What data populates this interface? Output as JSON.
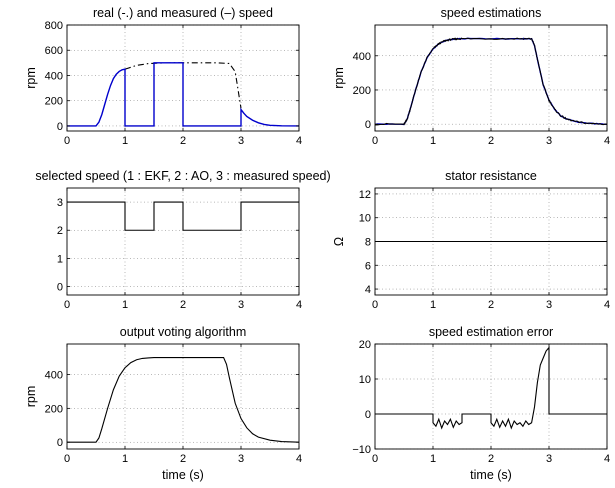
{
  "chart_data": [
    {
      "type": "line",
      "title": "real (-.) and measured (–) speed",
      "xlabel": "",
      "ylabel": "rpm",
      "xlim": [
        0,
        4
      ],
      "ylim": [
        -40,
        800
      ],
      "xticks": [
        0,
        1,
        2,
        3,
        4
      ],
      "yticks": [
        0,
        200,
        400,
        600,
        800
      ],
      "grid": true,
      "series": [
        {
          "style": "dash-dot",
          "color": "#000000",
          "x": [
            1.0,
            1.2,
            1.4,
            1.6,
            1.8,
            2.0,
            2.2,
            2.4,
            2.6,
            2.8,
            2.9,
            3.0
          ],
          "y": [
            450,
            480,
            494,
            498,
            500,
            500,
            500,
            500,
            500,
            495,
            430,
            140
          ]
        },
        {
          "style": "solid",
          "color": "#0000cc",
          "x": [
            0,
            0.5,
            0.55,
            0.6,
            0.65,
            0.7,
            0.75,
            0.8,
            0.85,
            0.9,
            0.95,
            1.0,
            1.0,
            1.5,
            1.5,
            2.0,
            2.0,
            3.0,
            3.0,
            3.05,
            3.1,
            3.2,
            3.3,
            3.4,
            3.5,
            3.7,
            4.0
          ],
          "y": [
            0,
            0,
            30,
            90,
            170,
            250,
            320,
            375,
            410,
            432,
            445,
            450,
            0,
            0,
            500,
            500,
            0,
            0,
            130,
            100,
            75,
            45,
            25,
            12,
            5,
            1,
            0
          ]
        }
      ]
    },
    {
      "type": "line",
      "title": "speed estimations",
      "xlabel": "",
      "ylabel": "rpm",
      "xlim": [
        0,
        4
      ],
      "ylim": [
        -40,
        580
      ],
      "xticks": [
        0,
        1,
        2,
        3,
        4
      ],
      "yticks": [
        0,
        200,
        400
      ],
      "grid": true,
      "series": [
        {
          "style": "solid-noisy",
          "color": "#0000cc",
          "x": [
            0,
            0.5,
            0.55,
            0.6,
            0.7,
            0.8,
            0.9,
            1.0,
            1.1,
            1.2,
            1.3,
            1.4,
            1.5,
            2.0,
            2.5,
            2.7,
            2.75,
            2.8,
            2.9,
            3.0,
            3.1,
            3.2,
            3.3,
            3.5,
            3.7,
            4.0
          ],
          "y": [
            0,
            0,
            25,
            80,
            200,
            310,
            390,
            440,
            470,
            487,
            495,
            498,
            500,
            500,
            500,
            500,
            460,
            380,
            230,
            140,
            85,
            50,
            30,
            12,
            4,
            0
          ]
        },
        {
          "style": "solid-noisy",
          "color": "#000000",
          "x": [
            0,
            0.5,
            0.55,
            0.6,
            0.7,
            0.8,
            0.9,
            1.0,
            1.1,
            1.2,
            1.3,
            1.4,
            1.5,
            2.0,
            2.5,
            2.7,
            2.75,
            2.8,
            2.9,
            3.0,
            3.1,
            3.2,
            3.3,
            3.5,
            3.7,
            4.0
          ],
          "y": [
            0,
            0,
            25,
            80,
            200,
            310,
            390,
            440,
            470,
            487,
            495,
            498,
            500,
            500,
            500,
            500,
            460,
            380,
            230,
            140,
            85,
            50,
            30,
            12,
            4,
            0
          ]
        }
      ]
    },
    {
      "type": "line",
      "title": "selected speed (1 : EKF, 2 : AO, 3 : measured speed)",
      "xlabel": "",
      "ylabel": "",
      "xlim": [
        0,
        4
      ],
      "ylim": [
        -0.3,
        3.5
      ],
      "xticks": [
        0,
        1,
        2,
        3,
        4
      ],
      "yticks": [
        0,
        1,
        2,
        3
      ],
      "grid": true,
      "series": [
        {
          "style": "solid",
          "color": "#000000",
          "x": [
            0,
            1,
            1,
            1.5,
            1.5,
            2,
            2,
            3,
            3,
            4
          ],
          "y": [
            3,
            3,
            2,
            2,
            3,
            3,
            2,
            2,
            3,
            3
          ]
        }
      ]
    },
    {
      "type": "line",
      "title": "stator resistance",
      "xlabel": "",
      "ylabel": "Ω",
      "xlim": [
        0,
        4
      ],
      "ylim": [
        3.5,
        12.5
      ],
      "xticks": [
        0,
        1,
        2,
        3,
        4
      ],
      "yticks": [
        4,
        6,
        8,
        10,
        12
      ],
      "grid": true,
      "series": [
        {
          "style": "solid",
          "color": "#000000",
          "x": [
            0,
            4
          ],
          "y": [
            8,
            8
          ]
        }
      ]
    },
    {
      "type": "line",
      "title": "output voting algorithm",
      "xlabel": "time (s)",
      "ylabel": "rpm",
      "xlim": [
        0,
        4
      ],
      "ylim": [
        -40,
        580
      ],
      "xticks": [
        0,
        1,
        2,
        3,
        4
      ],
      "yticks": [
        0,
        200,
        400
      ],
      "grid": true,
      "series": [
        {
          "style": "solid",
          "color": "#000000",
          "x": [
            0,
            0.5,
            0.55,
            0.6,
            0.7,
            0.8,
            0.9,
            1.0,
            1.1,
            1.2,
            1.3,
            1.4,
            1.5,
            2.0,
            2.5,
            2.7,
            2.75,
            2.8,
            2.9,
            3.0,
            3.1,
            3.2,
            3.3,
            3.5,
            3.7,
            4.0
          ],
          "y": [
            0,
            0,
            25,
            80,
            200,
            310,
            390,
            440,
            470,
            487,
            495,
            498,
            500,
            500,
            500,
            500,
            460,
            380,
            230,
            140,
            85,
            50,
            30,
            12,
            4,
            0
          ]
        }
      ]
    },
    {
      "type": "line",
      "title": "speed estimation error",
      "xlabel": "time (s)",
      "ylabel": "",
      "xlim": [
        0,
        4
      ],
      "ylim": [
        -10,
        20
      ],
      "xticks": [
        0,
        1,
        2,
        3,
        4
      ],
      "yticks": [
        -10,
        0,
        10,
        20
      ],
      "grid": true,
      "series": [
        {
          "style": "solid",
          "color": "#000000",
          "x": [
            0,
            1.0,
            1.0,
            1.05,
            1.1,
            1.15,
            1.2,
            1.25,
            1.3,
            1.35,
            1.4,
            1.45,
            1.5,
            1.5,
            2.0,
            2.0,
            2.05,
            2.1,
            2.15,
            2.2,
            2.25,
            2.3,
            2.35,
            2.4,
            2.45,
            2.5,
            2.55,
            2.6,
            2.65,
            2.7,
            2.75,
            2.8,
            2.85,
            2.9,
            2.95,
            3.0,
            3.0,
            4.0
          ],
          "y": [
            0,
            0,
            -2.5,
            -3.5,
            -1.5,
            -4,
            -2,
            -3,
            -1.5,
            -3.8,
            -2,
            -3,
            -2.5,
            0,
            0,
            -2.5,
            -3.5,
            -1.5,
            -3.8,
            -2,
            -3.5,
            -1.5,
            -4,
            -2,
            -3,
            -2.5,
            -3.5,
            -2,
            -3,
            -2.5,
            2,
            9,
            14,
            16,
            18,
            19,
            0,
            0
          ]
        }
      ]
    }
  ]
}
